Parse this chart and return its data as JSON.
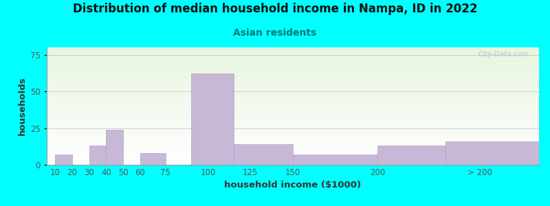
{
  "title": "Distribution of median household income in Nampa, ID in 2022",
  "subtitle": "Asian residents",
  "xlabel": "household income ($1000)",
  "ylabel": "households",
  "background_color": "#00FFFF",
  "bar_color": "#c8b8d8",
  "bar_edge_color": "#b0a0c8",
  "grid_color": "#cccccc",
  "tick_label_color": "#555555",
  "title_color": "#111111",
  "subtitle_color": "#007777",
  "axis_label_color": "#333333",
  "watermark": "City-Data.com",
  "tick_labels": [
    "10",
    "20",
    "30",
    "40",
    "50",
    "60",
    "75",
    "100",
    "125",
    "150",
    "200",
    "> 200"
  ],
  "tick_positions": [
    10,
    20,
    30,
    40,
    50,
    60,
    75,
    100,
    125,
    150,
    200,
    240
  ],
  "bar_lefts": [
    10,
    30,
    40,
    60,
    75,
    90,
    115,
    150,
    200,
    240
  ],
  "bar_widths": [
    10,
    10,
    15,
    10,
    10,
    20,
    30,
    40,
    35,
    55
  ],
  "bar_values": [
    7,
    13,
    24,
    8,
    0,
    62,
    14,
    7,
    13,
    16
  ],
  "ylim": [
    0,
    80
  ],
  "yticks": [
    0,
    25,
    50,
    75
  ],
  "title_fontsize": 12,
  "subtitle_fontsize": 10,
  "axis_label_fontsize": 9.5,
  "tick_fontsize": 8.5
}
